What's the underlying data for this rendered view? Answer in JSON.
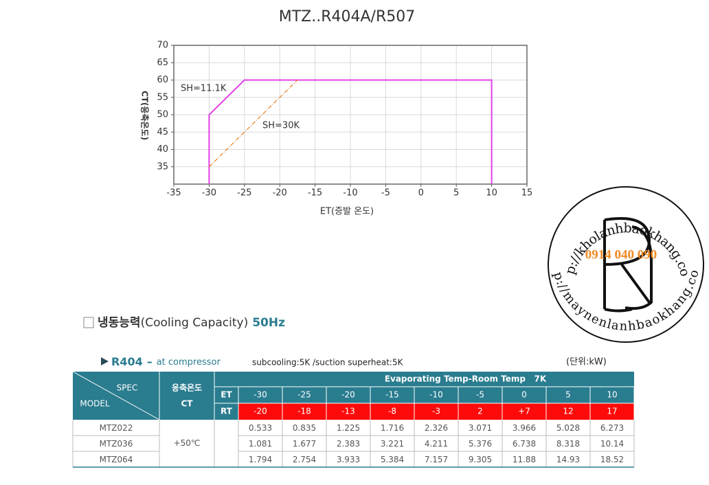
{
  "chart_data": {
    "type": "line",
    "title": "MTZ..R404A/R507",
    "xlabel": "ET(증발 온도)",
    "ylabel": "CT(응축온도)",
    "xlim": [
      -35,
      15
    ],
    "xticks": [
      -35,
      -30,
      -25,
      -20,
      -15,
      -10,
      -5,
      0,
      5,
      10,
      15
    ],
    "ylim": [
      30,
      70
    ],
    "yticks": [
      35,
      40,
      45,
      50,
      55,
      60,
      65,
      70
    ],
    "grid": true,
    "series": [
      {
        "name": "SH=11.1K",
        "color": "#e040e8",
        "line_style": "solid",
        "x": [
          -30,
          -30,
          -25,
          10,
          10
        ],
        "values": [
          30,
          50,
          60,
          60,
          30
        ]
      },
      {
        "name": "SH=30K",
        "color": "#e8862a",
        "line_style": "dashdot",
        "x": [
          -30,
          -17.5
        ],
        "values": [
          35,
          60
        ]
      }
    ]
  },
  "section": {
    "title": "냉동능력",
    "subtitle": "(Cooling Capacity)",
    "frequency": "50Hz"
  },
  "table_caption": {
    "refrigerant": "R404",
    "dash": "–",
    "location": "at compressor",
    "conditions": "subcooling:5K /suction superheat:5K",
    "unit": "(단위:kW)"
  },
  "table": {
    "spec": "SPEC",
    "model": "MODEL",
    "ct_header": "응축온도",
    "ct_label": "CT",
    "group_header": "Evaporating Temp-Room Temp   7K",
    "et_label": "ET",
    "et": [
      "-30",
      "-25",
      "-20",
      "-15",
      "-10",
      "-5",
      "0",
      "5",
      "10"
    ],
    "rt_label": "RT",
    "rt": [
      "-20",
      "-18",
      "-13",
      "-8",
      "-3",
      "2",
      "+7",
      "12",
      "17"
    ],
    "ct_value": "+50℃",
    "rows": [
      {
        "model": "MTZ022",
        "values": [
          0.533,
          0.835,
          1.225,
          1.716,
          2.326,
          3.071,
          3.966,
          5.028,
          6.273
        ]
      },
      {
        "model": "MTZ036",
        "values": [
          1.081,
          1.677,
          2.383,
          3.221,
          4.211,
          5.376,
          6.738,
          8.318,
          10.14
        ]
      },
      {
        "model": "MTZ064",
        "values": [
          1.794,
          2.754,
          3.933,
          5.384,
          7.157,
          9.305,
          11.88,
          14.93,
          18.52
        ]
      }
    ]
  },
  "logo": {
    "url_top": "http://kholanhbaokhang.com/",
    "phone": "0914 040 090",
    "url_bottom": "http://maynenlanhbaokhang.com/"
  }
}
